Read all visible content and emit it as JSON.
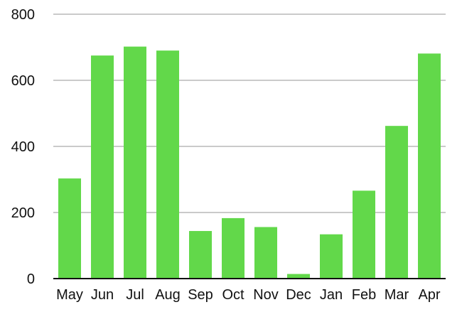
{
  "chart_data": {
    "type": "bar",
    "title": "",
    "xlabel": "",
    "ylabel": "",
    "categories": [
      "May",
      "Jun",
      "Jul",
      "Aug",
      "Sep",
      "Oct",
      "Nov",
      "Dec",
      "Jan",
      "Feb",
      "Mar",
      "Apr"
    ],
    "values": [
      303,
      675,
      702,
      690,
      144,
      183,
      156,
      14,
      134,
      266,
      462,
      681
    ],
    "ylim": [
      0,
      800
    ],
    "yticks": [
      0,
      200,
      400,
      600,
      800
    ],
    "grid": true,
    "legend": "none"
  },
  "colors": {
    "bar": "#62d84a",
    "grid": "#b9b9b9",
    "axis": "#111111",
    "text": "#111111",
    "background": "#ffffff"
  }
}
